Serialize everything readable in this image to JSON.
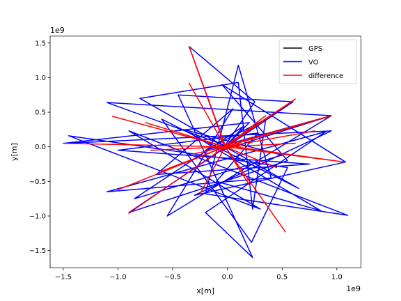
{
  "chart_data": {
    "type": "line",
    "title": "",
    "xlabel": "x[m]",
    "ylabel": "y[m]",
    "x_offset_label": "1e9",
    "y_offset_label": "1e9",
    "xlim": [
      -1.62,
      1.22
    ],
    "ylim": [
      -1.75,
      1.6
    ],
    "x_ticks": [
      -1.5,
      -1.0,
      -0.5,
      0.0,
      0.5,
      1.0
    ],
    "x_tick_labels": [
      "−1.5",
      "−1.0",
      "−0.5",
      "0.0",
      "0.5",
      "1.0"
    ],
    "y_ticks": [
      -1.5,
      -1.0,
      -0.5,
      0.0,
      0.5,
      1.0,
      1.5
    ],
    "y_tick_labels": [
      "−1.5",
      "−1.0",
      "−0.5",
      "0.0",
      "0.5",
      "1.0",
      "1.5"
    ],
    "grid": false,
    "legend_position": "upper-right",
    "series": [
      {
        "name": "GPS",
        "color": "#000000",
        "x": [
          0.0,
          0.0
        ],
        "y": [
          0.0,
          0.0
        ]
      },
      {
        "name": "VO",
        "color": "#0000ff",
        "x": [
          -0.02,
          -0.35,
          0.25,
          -0.02,
          -1.1,
          0.95,
          -0.05,
          0.2,
          -1.5,
          0.95,
          -0.3,
          1.08,
          -0.05,
          0.55,
          -0.9,
          0.6,
          -0.45,
          0.23,
          -0.2,
          0.9,
          -1.1,
          0.4,
          0.1,
          -0.2,
          1.1,
          -0.9,
          0.3,
          -1.45,
          0.55,
          0.22,
          -0.6,
          0.65,
          -0.8,
          0.1,
          0.23,
          0.35,
          -0.2,
          0.95,
          -0.55,
          0.05,
          -0.65,
          0.75,
          -1.0,
          0.28,
          -0.1,
          0.85,
          -0.4,
          0.5,
          -0.85,
          0.15,
          -0.02
        ],
        "y": [
          0.0,
          1.45,
          0.65,
          0.02,
          0.64,
          0.45,
          -0.05,
          0.35,
          0.05,
          0.23,
          -0.7,
          -0.22,
          0.9,
          -0.2,
          -0.95,
          0.65,
          0.75,
          -1.6,
          -0.95,
          0.22,
          -0.65,
          -0.45,
          1.18,
          -0.68,
          -0.99,
          0.23,
          -0.9,
          0.16,
          -0.3,
          -1.38,
          0.4,
          -0.6,
          0.7,
          0.93,
          -0.9,
          0.4,
          -0.05,
          0.45,
          -1.0,
          0.55,
          -0.4,
          -0.25,
          -0.05,
          0.2,
          -0.5,
          -0.92,
          0.25,
          -0.12,
          -0.75,
          0.3,
          0.0
        ]
      },
      {
        "name": "difference",
        "color": "#ff0000",
        "x": [
          -0.02,
          -0.35,
          -0.02,
          0.62,
          -0.02,
          0.95,
          -0.02,
          1.07,
          -0.02,
          0.53,
          -0.02,
          -0.9,
          -0.02,
          -1.05,
          -0.02,
          -1.5,
          -0.02,
          -1.0,
          -0.02,
          -0.25,
          -0.02,
          0.35,
          -0.02,
          -0.6,
          -0.02,
          -0.35,
          -0.02,
          0.8,
          -0.02,
          -0.75,
          -0.02,
          0.45,
          -0.02,
          -0.3,
          -0.02,
          0.62,
          -0.02,
          -0.7,
          -0.02,
          0.2,
          -0.02
        ],
        "y": [
          0.0,
          1.45,
          0.02,
          0.69,
          0.0,
          0.45,
          0.02,
          -0.22,
          0.0,
          -1.23,
          0.0,
          -0.96,
          0.0,
          0.44,
          0.0,
          0.05,
          0.0,
          -0.62,
          0.0,
          -0.68,
          0.0,
          0.45,
          0.0,
          -0.35,
          0.0,
          0.92,
          0.0,
          0.23,
          0.0,
          0.35,
          0.0,
          -0.3,
          0.0,
          -0.1,
          0.0,
          0.05,
          0.0,
          -0.05,
          0.0,
          -0.55,
          0.0
        ]
      }
    ]
  }
}
